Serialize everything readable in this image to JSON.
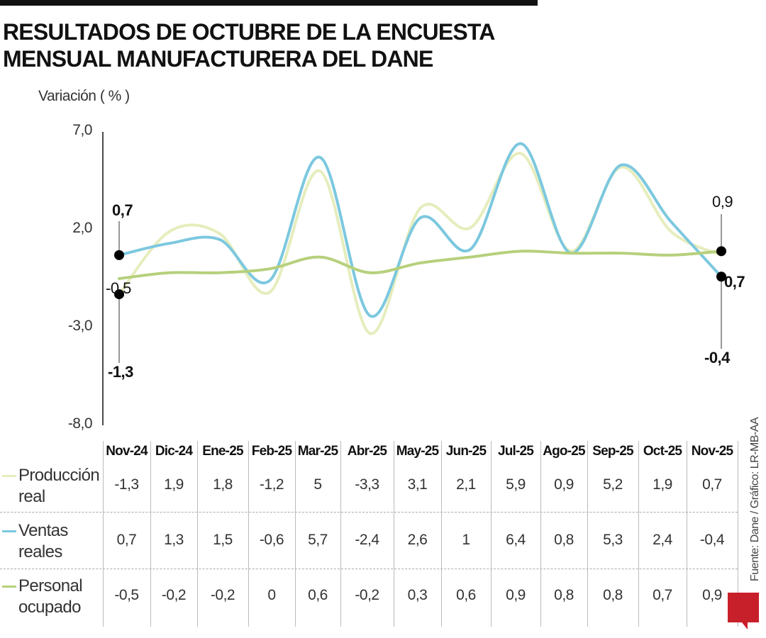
{
  "title_line1": "RESULTADOS DE OCTUBRE DE LA ENCUESTA",
  "title_line2": "MENSUAL MANUFACTURERA DEL DANE",
  "source": "Fuente: Dane / Gráfico: LR-MB-AA",
  "logo": "LR",
  "chart_data": {
    "type": "line",
    "ylabel": "Variación ( % )",
    "ylim": [
      -8,
      7
    ],
    "yticks": [
      "7,0",
      "2,0",
      "-3,0",
      "-8,0"
    ],
    "ytick_values": [
      7,
      2,
      -3,
      -8
    ],
    "categories": [
      "Nov-24",
      "Dic-24",
      "Ene-25",
      "Feb-25",
      "Mar-25",
      "Abr-25",
      "May-25",
      "Jun-25",
      "Jul-25",
      "Ago-25",
      "Sep-25",
      "Oct-25",
      "Nov-25"
    ],
    "series": [
      {
        "name": "Producción real",
        "name_l1": "Producción",
        "name_l2": "real",
        "color": "#e6edbd",
        "values": [
          -1.3,
          1.9,
          1.8,
          -1.2,
          5,
          -3.3,
          3.1,
          2.1,
          5.9,
          0.9,
          5.2,
          1.9,
          0.7
        ],
        "labels": [
          "-1,3",
          "1,9",
          "1,8",
          "-1,2",
          "5",
          "-3,3",
          "3,1",
          "2,1",
          "5,9",
          "0,9",
          "5,2",
          "1,9",
          "0,7"
        ]
      },
      {
        "name": "Ventas reales",
        "name_l1": "Ventas",
        "name_l2": "reales",
        "color": "#7cc8df",
        "values": [
          0.7,
          1.3,
          1.5,
          -0.6,
          5.7,
          -2.4,
          2.6,
          1,
          6.4,
          0.8,
          5.3,
          2.4,
          -0.4
        ],
        "labels": [
          "0,7",
          "1,3",
          "1,5",
          "-0,6",
          "5,7",
          "-2,4",
          "2,6",
          "1",
          "6,4",
          "0,8",
          "5,3",
          "2,4",
          "-0,4"
        ]
      },
      {
        "name": "Personal ocupado",
        "name_l1": "Personal",
        "name_l2": "ocupado",
        "color": "#b6d07c",
        "values": [
          -0.5,
          -0.2,
          -0.2,
          0,
          0.6,
          -0.2,
          0.3,
          0.6,
          0.9,
          0.8,
          0.8,
          0.7,
          0.9
        ],
        "labels": [
          "-0,5",
          "-0,2",
          "-0,2",
          "0",
          "0,6",
          "-0,2",
          "0,3",
          "0,6",
          "0,9",
          "0,8",
          "0,8",
          "0,7",
          "0,9"
        ]
      }
    ],
    "annotations": {
      "start_ventas": "0,7",
      "start_produccion": "-1,3",
      "start_personal": "-0,5",
      "end_personal": "0,9",
      "end_produccion": "0,7",
      "end_ventas": "-0,4"
    },
    "grid": false,
    "legend": "table-left"
  }
}
